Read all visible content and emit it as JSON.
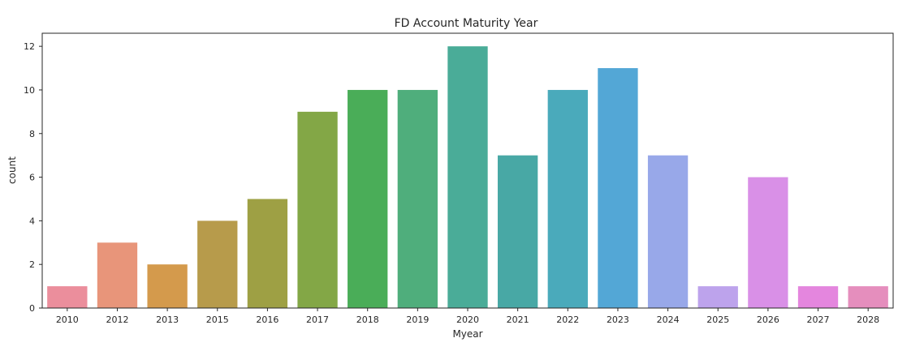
{
  "chart_data": {
    "type": "bar",
    "title": "FD Account Maturity Year",
    "xlabel": "Myear",
    "ylabel": "count",
    "categories": [
      "2010",
      "2012",
      "2013",
      "2015",
      "2016",
      "2017",
      "2018",
      "2019",
      "2020",
      "2021",
      "2022",
      "2023",
      "2024",
      "2025",
      "2026",
      "2027",
      "2028"
    ],
    "values": [
      1,
      3,
      2,
      4,
      5,
      9,
      10,
      10,
      12,
      7,
      10,
      11,
      7,
      1,
      6,
      1,
      1
    ],
    "ylim": [
      0,
      12.6
    ],
    "yticks": [
      0,
      2,
      4,
      6,
      8,
      10,
      12
    ],
    "grid": false,
    "colors": [
      "#eb8e9c",
      "#e8957a",
      "#d49a4c",
      "#b79b4b",
      "#9ea044",
      "#83a746",
      "#4aad58",
      "#4fae7c",
      "#4aac98",
      "#48a8a5",
      "#4aaabb",
      "#53a7d6",
      "#98a8e9",
      "#bda3ec",
      "#d990e7",
      "#e486de",
      "#e58ebd"
    ]
  }
}
